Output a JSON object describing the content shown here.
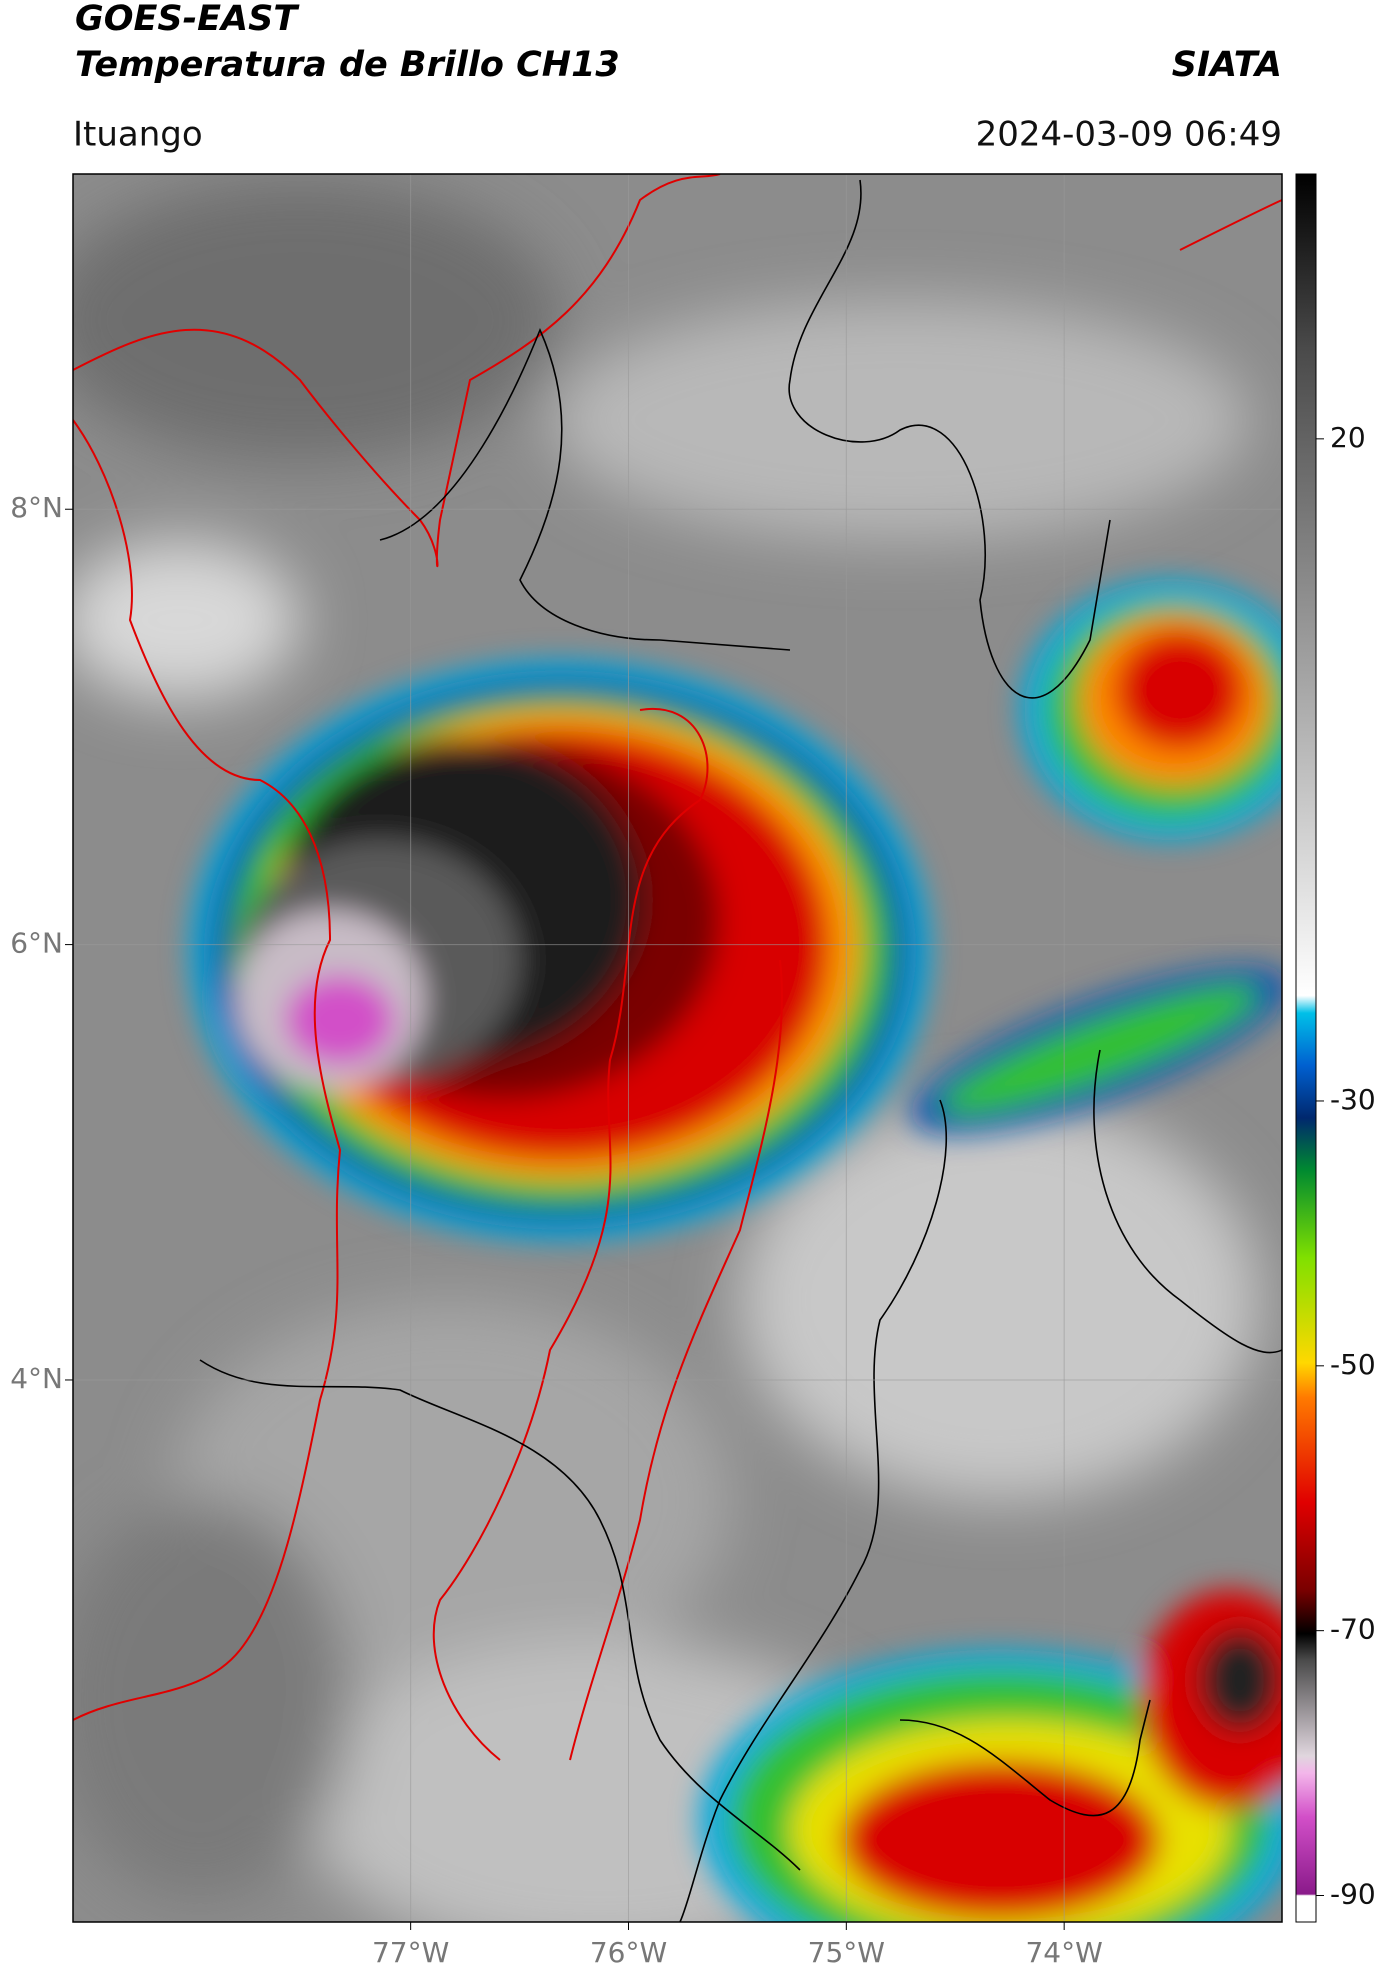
{
  "header": {
    "title": "GOES-EAST",
    "subtitle": "Temperatura de Brillo CH13",
    "brand": "SIATA",
    "location": "Ituango",
    "datetime": "2024-03-09 06:49"
  },
  "map": {
    "xlim": [
      -78.55,
      -73.0
    ],
    "ylim": [
      1.51,
      9.54
    ],
    "xticks": [
      {
        "value": -77,
        "label": "77°W"
      },
      {
        "value": -76,
        "label": "76°W"
      },
      {
        "value": -75,
        "label": "75°W"
      },
      {
        "value": -74,
        "label": "74°W"
      }
    ],
    "yticks": [
      {
        "value": 8,
        "label": "8°N"
      },
      {
        "value": 6,
        "label": "6°N"
      },
      {
        "value": 4,
        "label": "4°N"
      }
    ]
  },
  "colorbar": {
    "lim": [
      -92,
      40
    ],
    "ticks": [
      20,
      -30,
      -50,
      -70,
      -90
    ]
  }
}
